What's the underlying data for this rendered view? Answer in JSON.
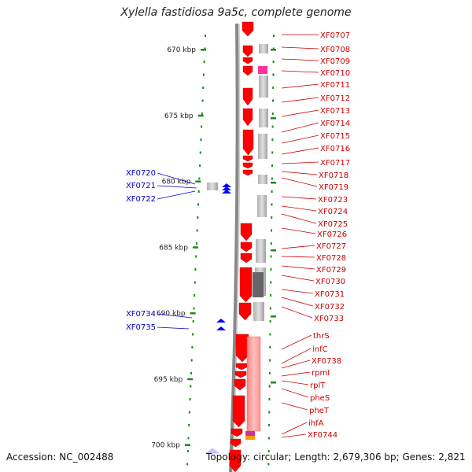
{
  "title": "Xylella fastidiosa 9a5c, complete genome",
  "footer": {
    "accession": "Accession: NC_002488",
    "topology": "Topology: circular; Length: 2,679,306 bp; Genes: 2,821"
  },
  "colors": {
    "forward_gene": "#ff0000",
    "reverse_gene": "#0000ff",
    "rna_gene": "#ff3399",
    "ruler_tick": "#1a8a1a",
    "label_red": "#cc0000",
    "label_blue": "#0000cc",
    "backbone": "#888888",
    "selection": "#c8c8ff"
  },
  "scale": {
    "unit": "kbp",
    "ticks": [
      {
        "label": "670 kbp",
        "kbp": 670
      },
      {
        "label": "675 kbp",
        "kbp": 675
      },
      {
        "label": "680 kbp",
        "kbp": 680
      },
      {
        "label": "685 kbp",
        "kbp": 685
      },
      {
        "label": "690 kbp",
        "kbp": 690
      },
      {
        "label": "695 kbp",
        "kbp": 695
      },
      {
        "label": "700 kbp",
        "kbp": 700
      }
    ]
  },
  "right_labels": [
    "XF0707",
    "XF0708",
    "XF0709",
    "XF0710",
    "XF0711",
    "XF0712",
    "XF0713",
    "XF0714",
    "XF0715",
    "XF0716",
    "XF0717",
    "XF0718",
    "XF0719",
    "XF0723",
    "XF0724",
    "XF0725",
    "XF0726",
    "XF0727",
    "XF0728",
    "XF0729",
    "XF0730",
    "XF0731",
    "XF0732",
    "XF0733",
    "thrS",
    "infC",
    "XF0738",
    "rpmI",
    "rplT",
    "pheS",
    "pheT",
    "ihfA",
    "XF0744"
  ],
  "left_labels": [
    "XF0720",
    "XF0721",
    "XF0722",
    "XF0734",
    "XF0735"
  ]
}
